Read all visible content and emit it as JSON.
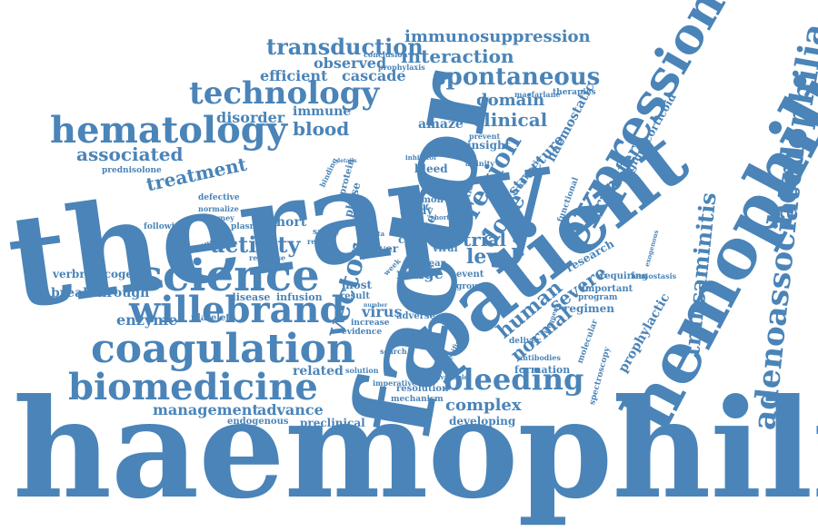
{
  "style": {
    "color": "#4a84b8",
    "background": "#ffffff"
  },
  "words": {
    "haemophilia": "haemophilia",
    "therapy": "therapy",
    "factor": "factor",
    "patient": "patient",
    "hemophilia_big": "hemophilia",
    "expression": "expression",
    "hemophilia": "hemophilia",
    "science": "science",
    "coagulation": "coagulation",
    "biomedicine": "biomedicine",
    "willebrand": "willebrand",
    "hematology": "hematology",
    "technology": "technology",
    "adenoassociated": "adenoassociated",
    "transaminitis": "transaminitis",
    "transduction": "transduction",
    "immunosuppression": "immunosuppression",
    "spontaneous": "spontaneous",
    "interaction": "interaction",
    "bleeding": "bleeding",
    "activity": "activity",
    "vector": "vector",
    "region": "region",
    "dose": "dose",
    "transfer": "transfer",
    "human": "human",
    "normal": "normal",
    "severe": "severe",
    "clinical": "clinical",
    "domain": "domain",
    "level": "level",
    "trial": "trial",
    "blood": "blood",
    "treatment": "treatment",
    "associated": "associated",
    "disorder": "disorder",
    "immune": "immune",
    "observed": "observed",
    "efficient": "efficient",
    "cascade": "cascade",
    "complex": "complex",
    "developing": "developing",
    "management": "management",
    "advance": "advance",
    "preclinical": "preclinical",
    "endogenous": "endogenous",
    "enzyme": "enzyme",
    "platelet": "platelet",
    "breakthrough": "breakthrough",
    "verbrinacogene": "verbrinacogene",
    "virus": "virus",
    "related": "related",
    "cohort": "cohort",
    "structure": "structure",
    "haemostatic": "haemostatic",
    "glucocorticoid": "glucocorticoid",
    "prophylactic": "prophylactic",
    "research": "research",
    "regimen": "regimen",
    "requiring": "requiring",
    "important": "important",
    "program": "program",
    "spectroscopy": "spectroscopy",
    "molecular": "molecular",
    "formation": "formation",
    "antibodies": "antibodies",
    "deliver": "deliver",
    "amaze": "amaze",
    "insight": "insight",
    "bleed": "bleed",
    "cure": "cure",
    "liver": "liver",
    "year": "year",
    "range": "range",
    "study": "study",
    "common": "common",
    "event": "event",
    "group": "group",
    "result": "result",
    "most": "most",
    "infusion": "infusion",
    "disease": "disease",
    "adverse": "adverse",
    "increase": "increase",
    "evidence": "evidence",
    "resolution": "resolution",
    "mechanism": "mechanism",
    "imperative": "imperative",
    "solution": "solution",
    "search": "search",
    "plasmon": "plasmon",
    "following": "following",
    "journey": "journey",
    "normalize": "normalize",
    "defective": "defective",
    "prednisolone": "prednisolone",
    "continuous": "continuous",
    "response": "response",
    "recent": "recent",
    "safety": "safety",
    "protein": "protein",
    "phase": "phase",
    "function": "function",
    "functional": "functional",
    "efficacy": "efficacy",
    "affinity": "affinity",
    "traumatic": "traumatic",
    "therapies": "therapies",
    "macfarlane": "macfarlane",
    "prevent": "prevent",
    "prophylaxis": "prophylaxis",
    "conclusion": "conclusion",
    "half": "half-",
    "lite": "lite",
    "viral": "viral",
    "binding": "binding",
    "inhibitor": "inhibitor",
    "hemostasis": "hemostasis",
    "exogenous": "exogenous",
    "frequent": "frequent",
    "specific": "specific",
    "available": "available",
    "short": "short",
    "week": "week",
    "data": "data",
    "type": "type",
    "term": "term",
    "time": "time",
    "details": "details",
    "studies": "studies",
    "number": "number"
  }
}
